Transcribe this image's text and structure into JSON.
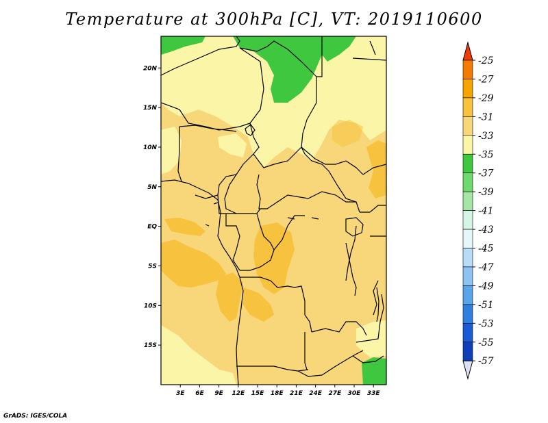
{
  "title": "Temperature at 300hPa [C], VT: 2019110600",
  "credit": "GrADS: IGES/COLA",
  "map": {
    "lon_range": [
      0,
      35
    ],
    "lat_range": [
      -20,
      24
    ],
    "lon_ticks": [
      "3E",
      "6E",
      "9E",
      "12E",
      "15E",
      "18E",
      "21E",
      "24E",
      "27E",
      "30E",
      "33E"
    ],
    "lat_ticks": [
      "20N",
      "15N",
      "10N",
      "5N",
      "EQ",
      "5S",
      "10S",
      "15S"
    ],
    "field": "Temperature at 300hPa",
    "units": "C",
    "valid_time": "2019110600"
  },
  "colorbar": {
    "labels": [
      "-25",
      "-27",
      "-29",
      "-31",
      "-33",
      "-35",
      "-37",
      "-39",
      "-41",
      "-43",
      "-45",
      "-47",
      "-49",
      "-51",
      "-53",
      "-55",
      "-57"
    ],
    "colors": [
      "#f03c00",
      "#f57a00",
      "#f5a400",
      "#f7c23e",
      "#f8d77a",
      "#fbf5a8",
      "#3fc73f",
      "#6fd96f",
      "#a5e6a5",
      "#d5f5e5",
      "#e5f7fb",
      "#b8dcf8",
      "#8cc3f3",
      "#5aa5ea",
      "#2f7fe0",
      "#1a5ad4",
      "#0e3fb8",
      "#0a2a8a",
      "#0a1263",
      "#dde3f7"
    ]
  }
}
